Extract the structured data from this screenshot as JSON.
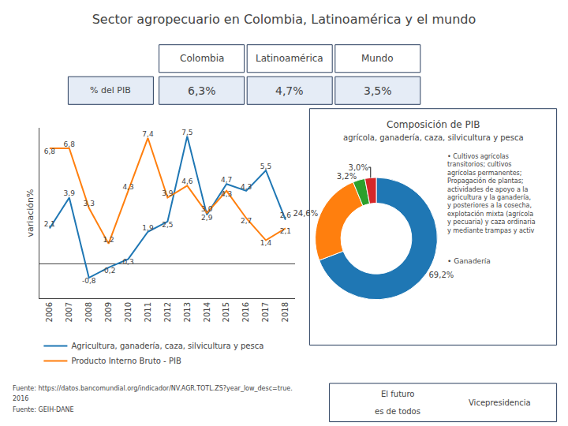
{
  "chart_data": [
    {
      "type": "table",
      "title": "Sector agropecuario en Colombia, Latinoamérica y el mundo",
      "categories": [
        "Colombia",
        "Latinoamérica",
        "Mundo"
      ],
      "series": [
        {
          "name": "% del PIB",
          "values": [
            6.3,
            4.7,
            3.5
          ],
          "value_labels": [
            "6,3%",
            "4,7%",
            "3,5%"
          ]
        }
      ]
    },
    {
      "type": "line",
      "x": [
        2006,
        2007,
        2008,
        2009,
        2010,
        2011,
        2012,
        2013,
        2014,
        2015,
        2016,
        2017,
        2018
      ],
      "series": [
        {
          "name": "Agricultura, ganadería, caza, silvicultura y pesca",
          "values": [
            2.1,
            3.9,
            -0.8,
            -0.2,
            0.3,
            1.9,
            2.5,
            7.5,
            2.9,
            4.7,
            4.3,
            5.5,
            2.6
          ],
          "value_labels": [
            "2,1",
            "3,9",
            "-0,8",
            "-0,2",
            "0,3",
            "1,9",
            "2,5",
            "7,5",
            "2,9",
            "4,7",
            "4,3",
            "5,5",
            "2,6"
          ]
        },
        {
          "name": "Producto Interno Bruto - PIB",
          "values": [
            6.8,
            6.8,
            3.3,
            1.2,
            4.3,
            7.4,
            3.9,
            4.6,
            3.0,
            4.3,
            2.7,
            1.4,
            2.1
          ],
          "value_labels": [
            "6,8",
            "6,8",
            "3,3",
            "1,2",
            "4,3",
            "7,4",
            "3,9",
            "4,6",
            "3,0",
            "4,3",
            "2,7",
            "1,4",
            "2,1"
          ]
        }
      ],
      "ylabel": "variación%",
      "xlim": [
        2005.5,
        2018.5
      ],
      "xticks": [
        2006,
        2007,
        2008,
        2009,
        2010,
        2011,
        2012,
        2013,
        2014,
        2015,
        2016,
        2017,
        2018
      ],
      "ylim": [
        -2,
        8
      ],
      "yticks": [],
      "tick_labels": "x",
      "grid": false,
      "legend": "bottom",
      "data_labels": true,
      "annotations": [
        "Fuente: https://datos.bancomundial.org/indicador/NV.AGR.TOTL.ZS?year_low_desc=true.",
        "2016",
        "Fuente: GEIH-DANE"
      ]
    },
    {
      "type": "pie",
      "title": "Composición de PIB",
      "subtitle": "agrícola, ganadería, caza, silvicultura y pesca",
      "values": [
        69.2,
        24.6,
        3.2,
        3.0
      ],
      "value_labels": [
        "69,2%",
        "24,6%",
        "3,2%",
        "3,0%"
      ],
      "data_labels": true,
      "annotations": [
        "• Cultivos agrícolas transitorios; cultivos agrícolas permanentes; Propagación de plantas; actividades de apoyo a la agricultura y la ganadería, y posteriores a la cosecha, explotación mixta (agrícola y pecuaria) y caza ordinaria y mediante trampas y activ",
        "• Ganadería",
        "El futuro",
        "es de todos",
        "Vicepresidencia"
      ]
    }
  ]
}
